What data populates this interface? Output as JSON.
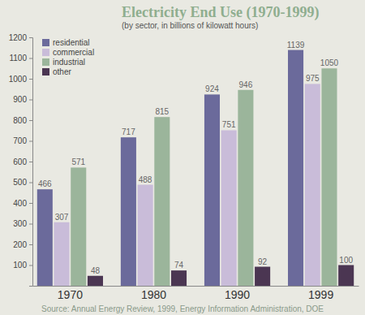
{
  "chart_data": {
    "type": "bar",
    "title": "Electricity End Use (1970-1999)",
    "subtitle": "(by sector, in billions of kilowatt hours)",
    "categories": [
      "1970",
      "1980",
      "1990",
      "1999"
    ],
    "series": [
      {
        "name": "residential",
        "color": "#6b6a9b",
        "values": [
          466,
          717,
          924,
          1139
        ]
      },
      {
        "name": "commercial",
        "color": "#c9bcd9",
        "values": [
          307,
          488,
          751,
          975
        ]
      },
      {
        "name": "industrial",
        "color": "#9bb59b",
        "values": [
          571,
          815,
          946,
          1050
        ]
      },
      {
        "name": "other",
        "color": "#4b3652",
        "values": [
          48,
          74,
          92,
          100
        ]
      }
    ],
    "ylim": [
      0,
      1200
    ],
    "yticks": [
      100,
      200,
      300,
      400,
      500,
      600,
      700,
      800,
      900,
      1000,
      1100,
      1200
    ],
    "grid": false,
    "legend": "upper left",
    "data_labels": true,
    "source": "Source: Annual Energy Review, 1999, Energy Information Administration, DOE"
  }
}
